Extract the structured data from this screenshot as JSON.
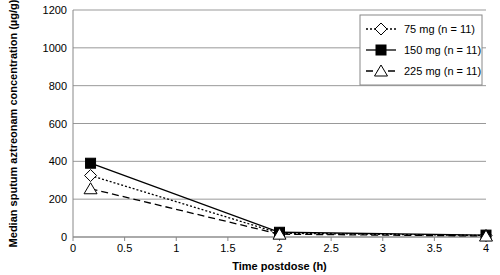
{
  "chart_data": {
    "type": "line",
    "x_label": "Time postdose (h)",
    "y_label": "Median sputum aztreonam concentration (µg/g)",
    "x": [
      0.17,
      2,
      4
    ],
    "series": [
      {
        "name": "75 mg (n = 11)",
        "color": "#000000",
        "marker": "diamond",
        "line_style": "dotted",
        "values": [
          325,
          20,
          8
        ]
      },
      {
        "name": "150 mg (n = 11)",
        "color": "#000000",
        "marker": "square",
        "line_style": "solid",
        "values": [
          390,
          25,
          10
        ]
      },
      {
        "name": "225 mg (n = 11)",
        "color": "#000000",
        "marker": "triangle",
        "line_style": "dashed",
        "values": [
          255,
          15,
          5
        ]
      }
    ],
    "xlim": [
      0,
      4
    ],
    "xticks": [
      0,
      0.5,
      1,
      1.5,
      2,
      2.5,
      3,
      3.5,
      4
    ],
    "ylim": [
      0,
      1200
    ],
    "yticks": [
      0,
      200,
      400,
      600,
      800,
      1000,
      1200
    ],
    "grid": true,
    "legend": "top-right"
  }
}
